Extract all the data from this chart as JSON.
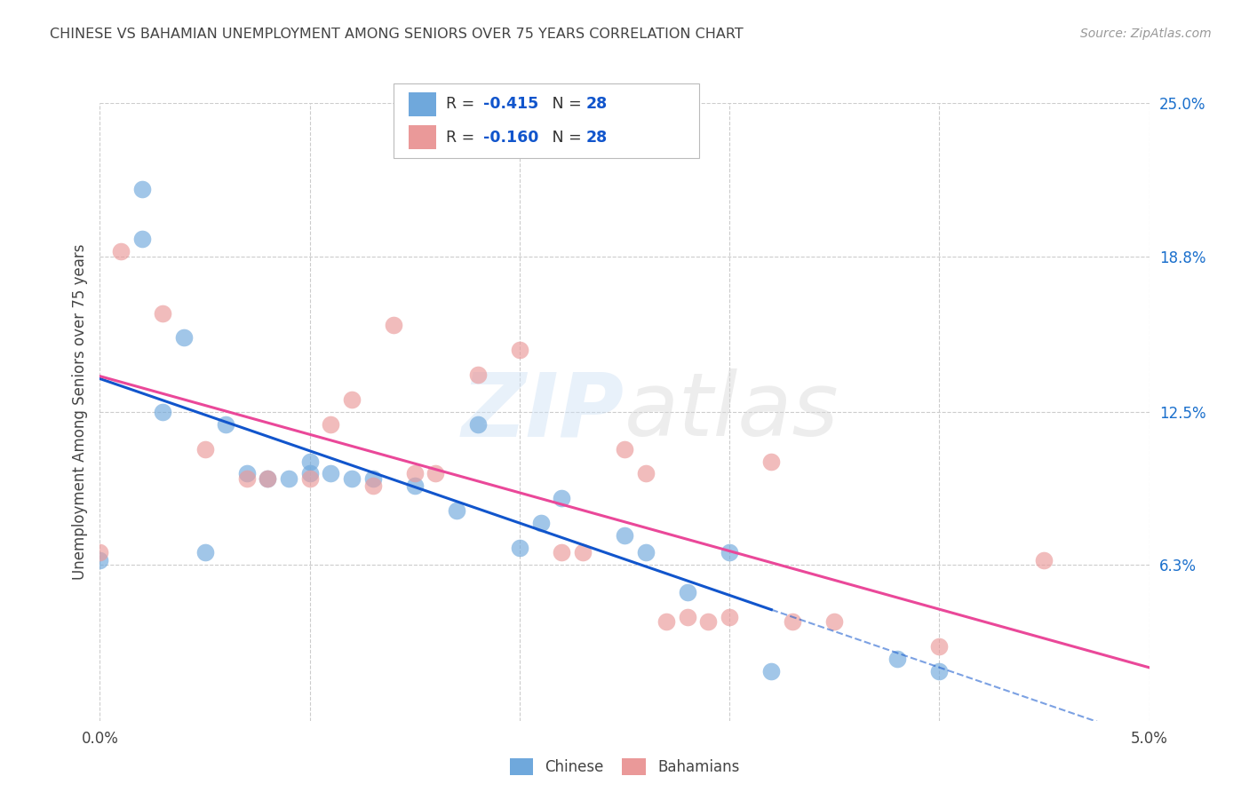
{
  "title": "CHINESE VS BAHAMIAN UNEMPLOYMENT AMONG SENIORS OVER 75 YEARS CORRELATION CHART",
  "source": "Source: ZipAtlas.com",
  "ylabel": "Unemployment Among Seniors over 75 years",
  "xlim": [
    0.0,
    0.05
  ],
  "ylim": [
    0.0,
    0.25
  ],
  "xticks": [
    0.0,
    0.01,
    0.02,
    0.03,
    0.04,
    0.05
  ],
  "xticklabels": [
    "0.0%",
    "",
    "",
    "",
    "",
    "5.0%"
  ],
  "ytick_right_labels": [
    "25.0%",
    "18.8%",
    "12.5%",
    "6.3%"
  ],
  "ytick_right_values": [
    0.25,
    0.188,
    0.125,
    0.063
  ],
  "chinese_color": "#6fa8dc",
  "bahamian_color": "#ea9999",
  "trendline_chinese_color": "#1155cc",
  "trendline_bahamian_color": "#ea4899",
  "R_chinese": -0.415,
  "R_bahamian": -0.16,
  "N_chinese": 28,
  "N_bahamian": 28,
  "chinese_x": [
    0.0,
    0.002,
    0.002,
    0.003,
    0.004,
    0.005,
    0.006,
    0.007,
    0.008,
    0.009,
    0.01,
    0.01,
    0.011,
    0.012,
    0.013,
    0.015,
    0.017,
    0.018,
    0.02,
    0.021,
    0.022,
    0.025,
    0.026,
    0.028,
    0.03,
    0.032,
    0.038,
    0.04
  ],
  "chinese_y": [
    0.065,
    0.215,
    0.195,
    0.125,
    0.155,
    0.068,
    0.12,
    0.1,
    0.098,
    0.098,
    0.1,
    0.105,
    0.1,
    0.098,
    0.098,
    0.095,
    0.085,
    0.12,
    0.07,
    0.08,
    0.09,
    0.075,
    0.068,
    0.052,
    0.068,
    0.02,
    0.025,
    0.02
  ],
  "bahamian_x": [
    0.0,
    0.001,
    0.003,
    0.005,
    0.007,
    0.008,
    0.01,
    0.011,
    0.012,
    0.013,
    0.014,
    0.015,
    0.016,
    0.018,
    0.02,
    0.022,
    0.023,
    0.025,
    0.026,
    0.027,
    0.028,
    0.029,
    0.03,
    0.032,
    0.033,
    0.035,
    0.04,
    0.045
  ],
  "bahamian_y": [
    0.068,
    0.19,
    0.165,
    0.11,
    0.098,
    0.098,
    0.098,
    0.12,
    0.13,
    0.095,
    0.16,
    0.1,
    0.1,
    0.14,
    0.15,
    0.068,
    0.068,
    0.11,
    0.1,
    0.04,
    0.042,
    0.04,
    0.042,
    0.105,
    0.04,
    0.04,
    0.03,
    0.065
  ],
  "watermark_zip": "ZIP",
  "watermark_atlas": "atlas",
  "background_color": "#ffffff",
  "grid_color": "#cccccc"
}
